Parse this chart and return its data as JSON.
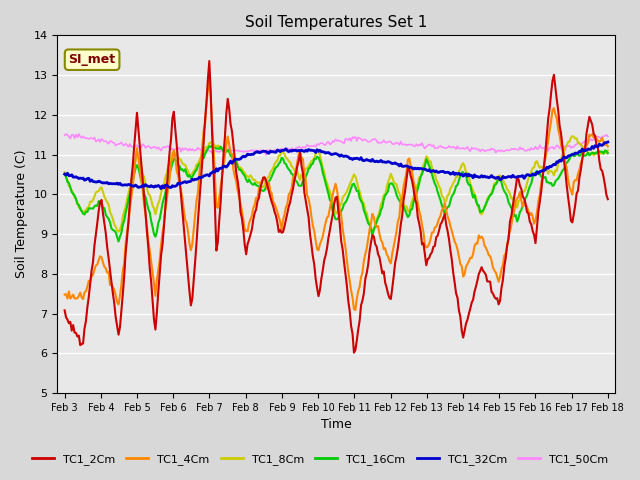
{
  "title": "Soil Temperatures Set 1",
  "xlabel": "Time",
  "ylabel": "Soil Temperature (C)",
  "ylim": [
    5.0,
    14.0
  ],
  "yticks": [
    5.0,
    6.0,
    7.0,
    8.0,
    9.0,
    10.0,
    11.0,
    12.0,
    13.0,
    14.0
  ],
  "xtick_labels": [
    "Feb 3",
    "Feb 4",
    "Feb 5",
    "Feb 6",
    "Feb 7",
    "Feb 8",
    "Feb 9",
    "Feb 10",
    "Feb 11",
    "Feb 12",
    "Feb 13",
    "Feb 14",
    "Feb 15",
    "Feb 16",
    "Feb 17",
    "Feb 18"
  ],
  "background_color": "#e8e8e8",
  "grid_color": "#ffffff",
  "legend_label": "SI_met",
  "tc1_2cm_x": [
    0,
    0.5,
    1,
    1.5,
    2,
    2.5,
    3,
    3.5,
    4,
    4.2,
    4.5,
    5,
    5.5,
    6,
    6.5,
    7,
    7.5,
    8,
    8.5,
    9,
    9.5,
    10,
    10.5,
    11,
    11.5,
    12,
    12.5,
    13,
    13.5,
    14,
    14.5,
    15
  ],
  "tc1_2cm_y": [
    7.0,
    6.2,
    10.0,
    6.3,
    12.1,
    6.5,
    12.2,
    7.0,
    13.4,
    8.4,
    12.5,
    8.5,
    10.5,
    8.9,
    11.0,
    7.4,
    10.0,
    6.0,
    9.0,
    7.3,
    10.8,
    8.2,
    9.5,
    6.4,
    8.2,
    7.2,
    10.5,
    8.8,
    13.1,
    9.2,
    12.0,
    9.9
  ],
  "tc1_4cm_x": [
    0,
    0.5,
    1,
    1.5,
    2,
    2.5,
    3,
    3.5,
    4,
    4.2,
    4.5,
    5,
    5.5,
    6,
    6.5,
    7,
    7.5,
    8,
    8.5,
    9,
    9.5,
    10,
    10.5,
    11,
    11.5,
    12,
    12.5,
    13,
    13.5,
    14,
    14.5,
    15
  ],
  "tc1_4cm_y": [
    7.5,
    7.4,
    8.5,
    7.2,
    11.2,
    7.5,
    11.2,
    8.5,
    13.0,
    9.5,
    11.5,
    9.0,
    10.5,
    9.2,
    11.1,
    8.5,
    10.3,
    7.0,
    9.5,
    8.2,
    11.0,
    8.6,
    9.8,
    8.0,
    9.0,
    7.8,
    10.0,
    9.3,
    12.2,
    10.0,
    11.5,
    11.2
  ],
  "tc1_8cm_x": [
    0,
    0.5,
    1,
    1.5,
    2,
    2.5,
    3,
    3.5,
    4,
    4.5,
    5,
    5.5,
    6,
    6.5,
    7,
    7.5,
    8,
    8.5,
    9,
    9.5,
    10,
    10.5,
    11,
    11.5,
    12,
    12.5,
    13,
    13.5,
    14,
    14.5,
    15
  ],
  "tc1_8cm_y": [
    10.5,
    9.5,
    10.2,
    9.0,
    11.0,
    9.5,
    11.1,
    10.5,
    11.3,
    11.1,
    10.5,
    10.2,
    11.1,
    10.4,
    11.1,
    9.5,
    10.5,
    9.0,
    10.5,
    9.5,
    11.0,
    9.8,
    10.8,
    9.5,
    10.5,
    9.7,
    10.8,
    10.5,
    11.5,
    11.0,
    11.1
  ],
  "tc1_16cm_x": [
    0,
    0.5,
    1,
    1.5,
    2,
    2.5,
    3,
    3.5,
    4,
    4.5,
    5,
    5.5,
    6,
    6.5,
    7,
    7.5,
    8,
    8.5,
    9,
    9.5,
    10,
    10.5,
    11,
    11.5,
    12,
    12.5,
    13,
    13.5,
    14,
    14.5,
    15
  ],
  "tc1_16cm_y": [
    10.5,
    9.5,
    9.8,
    8.8,
    10.8,
    8.9,
    10.9,
    10.4,
    11.2,
    11.1,
    10.4,
    10.1,
    10.9,
    10.2,
    11.0,
    9.3,
    10.3,
    9.0,
    10.3,
    9.4,
    10.9,
    9.5,
    10.6,
    9.5,
    10.4,
    9.3,
    10.6,
    10.2,
    11.0,
    11.0,
    11.1
  ],
  "tc1_32cm_x": [
    0,
    1,
    2,
    3,
    4,
    5,
    6,
    7,
    8,
    9,
    10,
    11,
    12,
    13,
    14,
    15
  ],
  "tc1_32cm_y": [
    10.5,
    10.3,
    10.2,
    10.2,
    10.5,
    11.0,
    11.1,
    11.1,
    10.9,
    10.8,
    10.6,
    10.5,
    10.4,
    10.5,
    11.0,
    11.3
  ],
  "tc1_50cm_x": [
    0,
    2,
    4,
    6,
    8,
    10,
    12,
    14,
    15
  ],
  "tc1_50cm_y": [
    11.5,
    11.2,
    11.1,
    11.1,
    11.4,
    11.2,
    11.1,
    11.2,
    11.5
  ],
  "series": {
    "TC1_2Cm": {
      "color": "#cc0000",
      "lw": 1.5
    },
    "TC1_4Cm": {
      "color": "#ff8800",
      "lw": 1.5
    },
    "TC1_8Cm": {
      "color": "#cccc00",
      "lw": 1.5
    },
    "TC1_16Cm": {
      "color": "#00cc00",
      "lw": 1.5
    },
    "TC1_32Cm": {
      "color": "#0000cc",
      "lw": 2.0
    },
    "TC1_50Cm": {
      "color": "#ff88ff",
      "lw": 1.2
    }
  }
}
